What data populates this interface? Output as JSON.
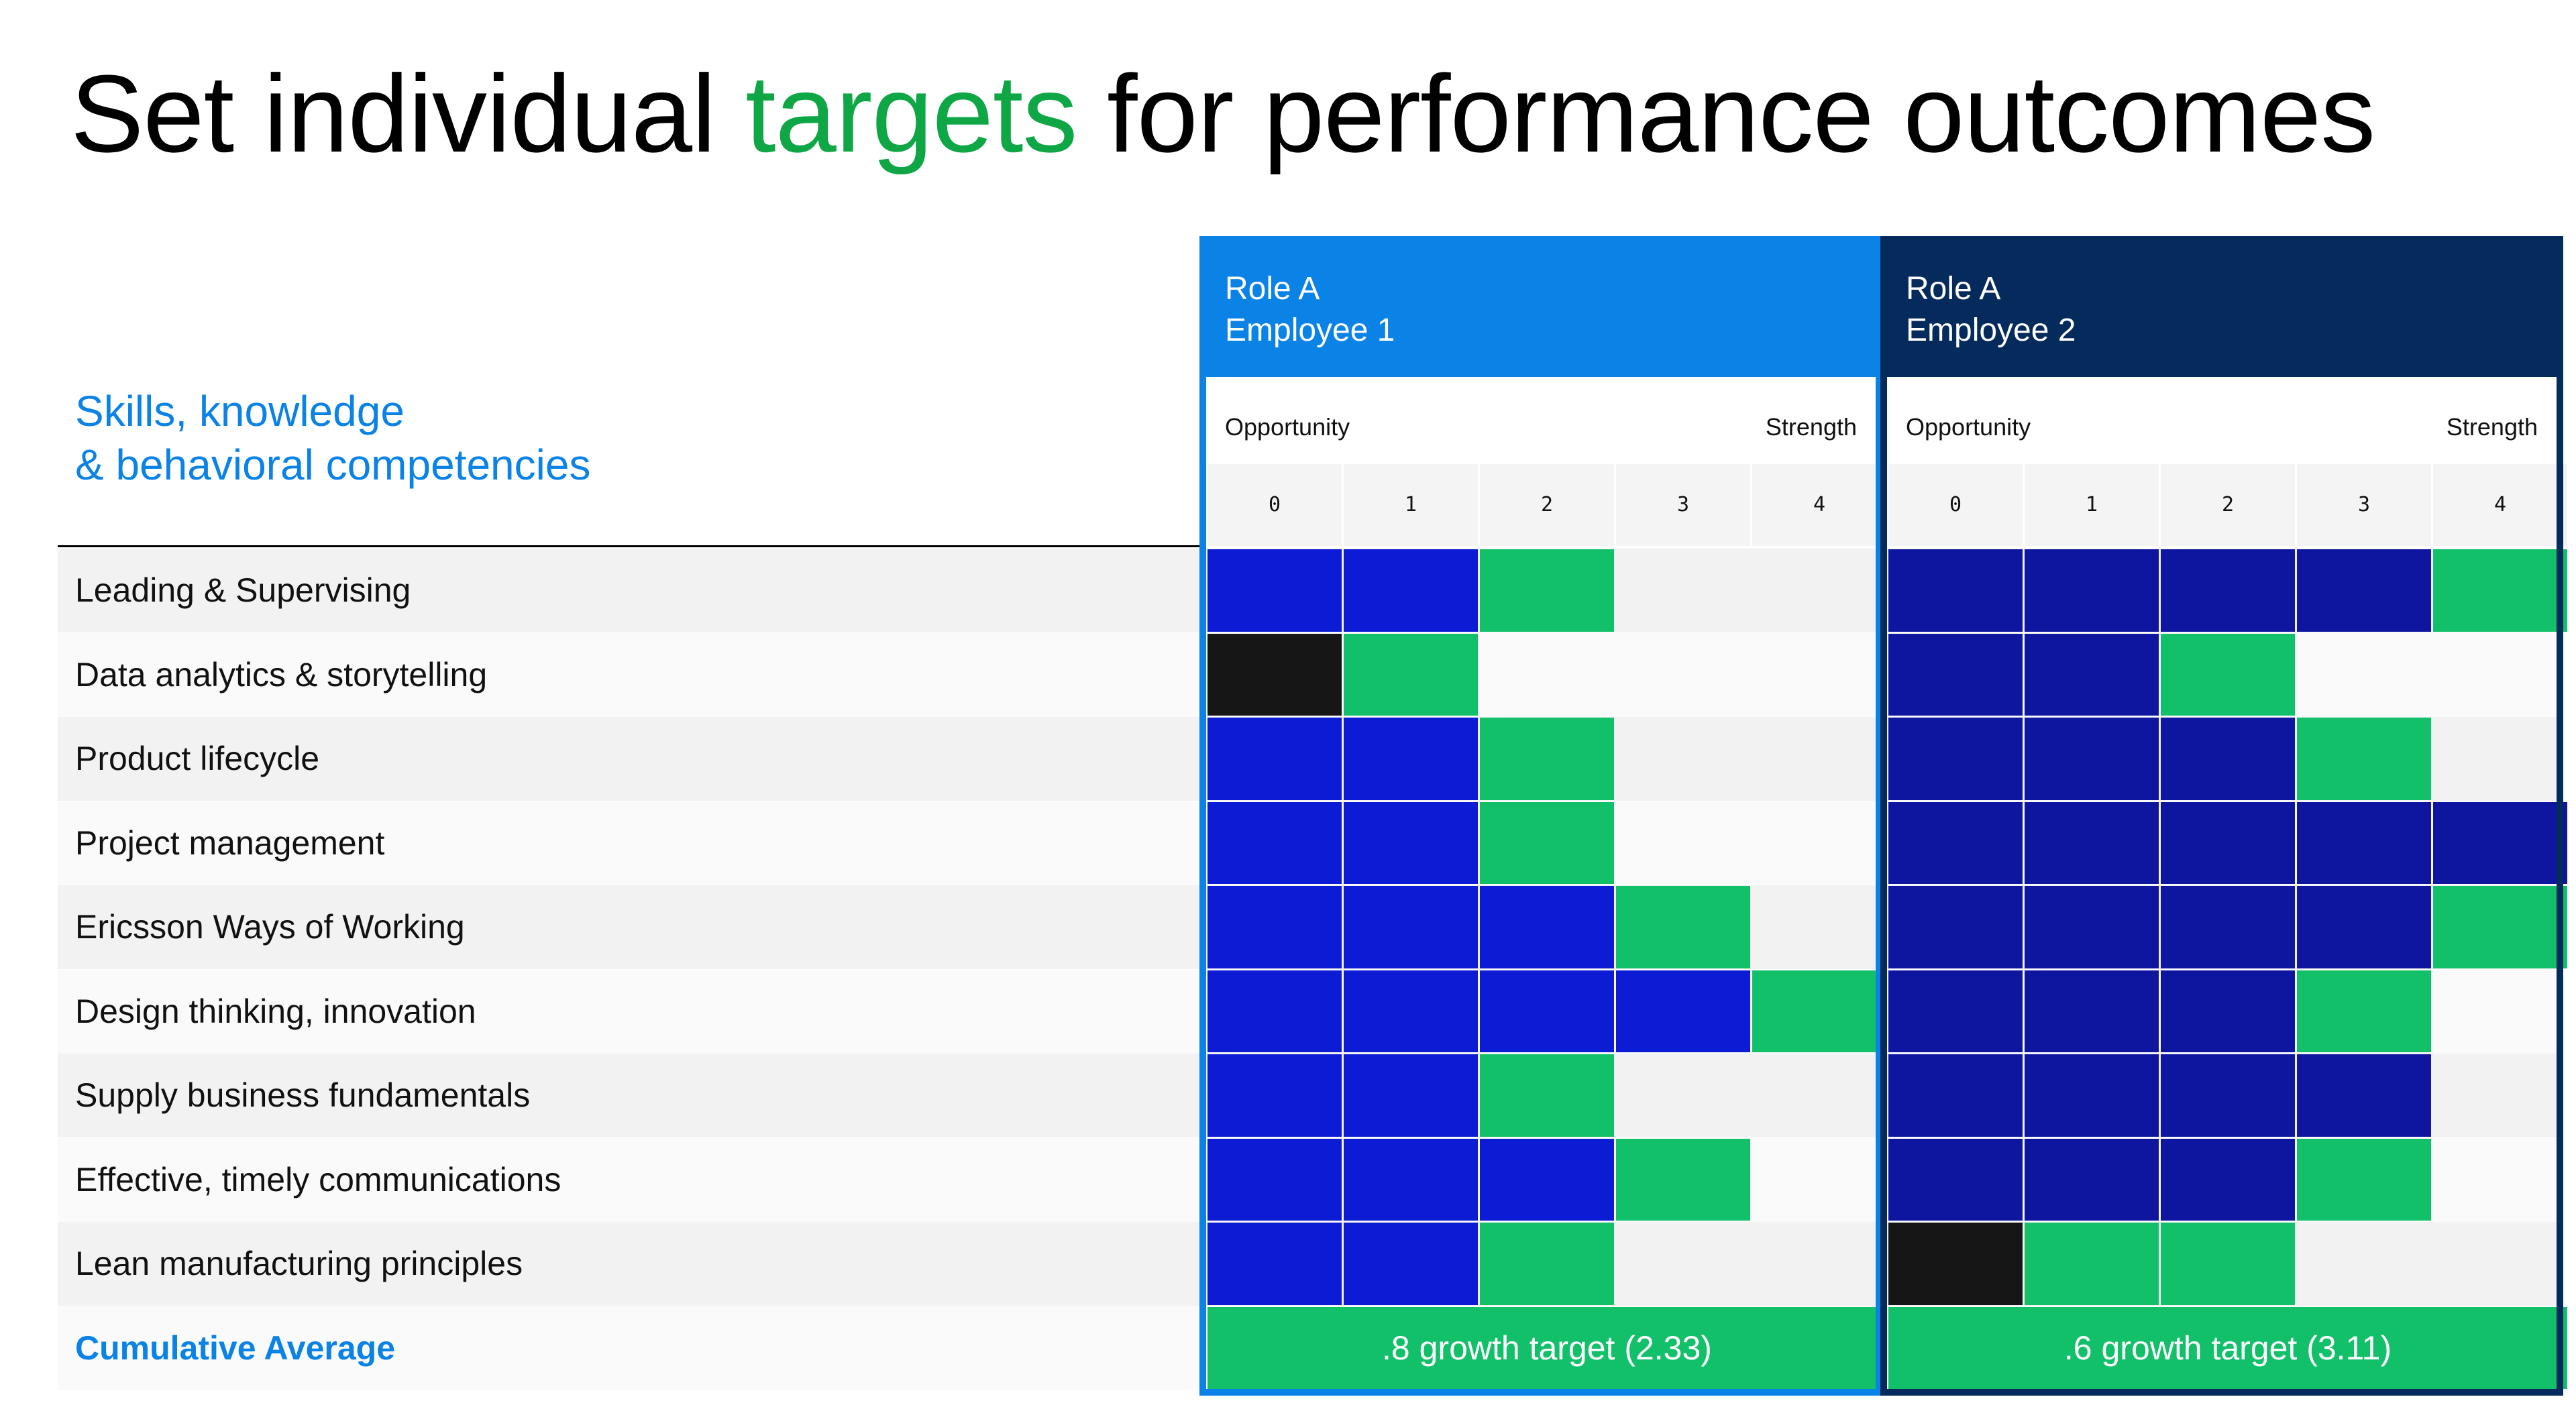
{
  "title": {
    "prefix": "Set individual ",
    "accent": "targets",
    "suffix": " for performance outcomes"
  },
  "skills_heading": {
    "line1": "Skills, knowledge",
    "line2": "& behavioral competencies"
  },
  "rows": [
    "Leading & Supervising",
    "Data analytics & storytelling",
    "Product lifecycle",
    "Project management",
    "Ericsson Ways of Working",
    "Design thinking, innovation",
    "Supply business fundamentals",
    "Effective, timely communications",
    "Lean manufacturing principles"
  ],
  "cumulative_label": "Cumulative Average",
  "scale": {
    "opportunity": "Opportunity",
    "strength": "Strength",
    "levels": [
      "0",
      "1",
      "2",
      "3",
      "4"
    ]
  },
  "colors": {
    "accent_green": "#0fa646",
    "skills_blue": "#0a82e6",
    "target_green": "#12c06a",
    "employee1_header": "#0a82e6",
    "employee2_header": "#052a5c",
    "employee1_fill": "#0c1bd4",
    "employee2_fill": "#0e16a0",
    "gap_black": "#161616"
  },
  "employees": [
    {
      "role": "Role A",
      "name": "Employee 1",
      "theme": "light",
      "cells": [
        [
          "f",
          "f",
          "t",
          "e",
          "e"
        ],
        [
          "k",
          "t",
          "e",
          "e",
          "e"
        ],
        [
          "f",
          "f",
          "t",
          "e",
          "e"
        ],
        [
          "f",
          "f",
          "t",
          "e",
          "e"
        ],
        [
          "f",
          "f",
          "f",
          "t",
          "e"
        ],
        [
          "f",
          "f",
          "f",
          "f",
          "t"
        ],
        [
          "f",
          "f",
          "t",
          "e",
          "e"
        ],
        [
          "f",
          "f",
          "f",
          "t",
          "e"
        ],
        [
          "f",
          "f",
          "t",
          "e",
          "e"
        ]
      ],
      "target": ".8 growth target (2.33)"
    },
    {
      "role": "Role A",
      "name": "Employee 2",
      "theme": "dark",
      "cells": [
        [
          "f",
          "f",
          "f",
          "f",
          "t"
        ],
        [
          "f",
          "f",
          "t",
          "e",
          "e"
        ],
        [
          "f",
          "f",
          "f",
          "t",
          "e"
        ],
        [
          "f",
          "f",
          "f",
          "f",
          "f"
        ],
        [
          "f",
          "f",
          "f",
          "f",
          "t"
        ],
        [
          "f",
          "f",
          "f",
          "t",
          "e"
        ],
        [
          "f",
          "f",
          "f",
          "f",
          "e"
        ],
        [
          "f",
          "f",
          "f",
          "t",
          "e"
        ],
        [
          "k",
          "t",
          "t",
          "e",
          "e"
        ]
      ],
      "target": ".6 growth target (3.11)"
    }
  ]
}
